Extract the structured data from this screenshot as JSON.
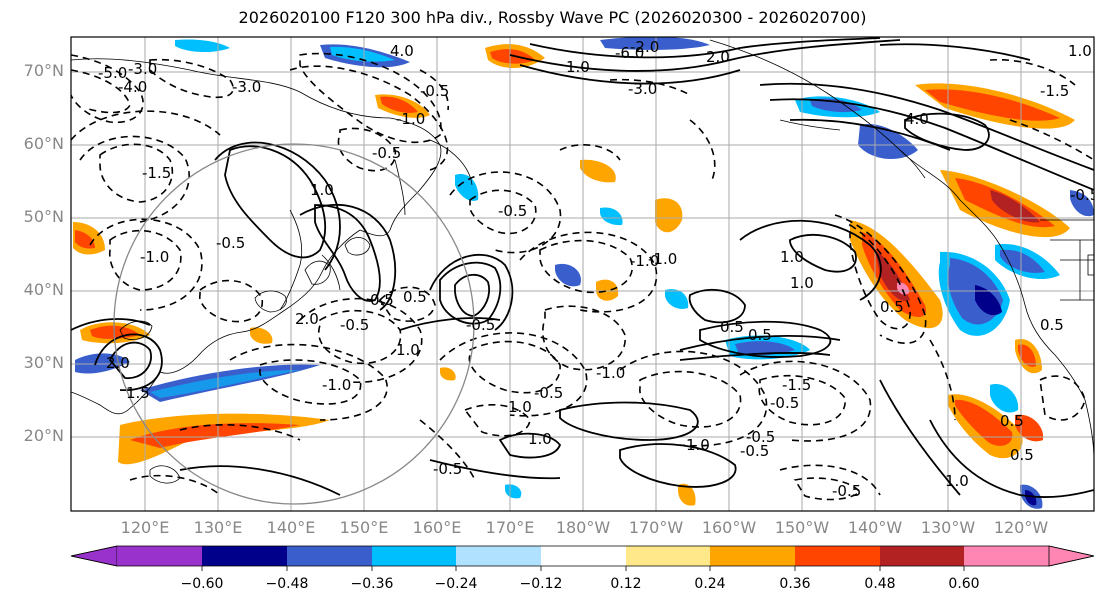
{
  "title": "2026020100 F120 300 hPa div., Rossby Wave PC (2026020300 - 2026020700)",
  "lat_labels": [
    "70°N",
    "60°N",
    "50°N",
    "40°N",
    "30°N",
    "20°N"
  ],
  "lon_labels": [
    "120°E",
    "130°E",
    "140°E",
    "150°E",
    "160°E",
    "170°E",
    "180°W",
    "170°W",
    "160°W",
    "150°W",
    "140°W",
    "130°W",
    "120°W"
  ],
  "colorbar": {
    "ticks": [
      "−0.60",
      "−0.48",
      "−0.36",
      "−0.24",
      "−0.12",
      "0.12",
      "0.24",
      "0.36",
      "0.48",
      "0.60"
    ],
    "colors": [
      "#9932cc",
      "#00008b",
      "#3a5fcd",
      "#00bfff",
      "#b0e2ff",
      "#ffffff",
      "#ffe88a",
      "#ffa500",
      "#ff4500",
      "#b22222",
      "#ff85b3"
    ]
  },
  "contour_labels": [
    "-5.0",
    "-4.0",
    "-3.0",
    "-3.0",
    "-1.5",
    "-1.0",
    "-0.5",
    "-0.5",
    "-0.5",
    "-0.5",
    "-1.0",
    "-1.0",
    "-1.0",
    "-1.0",
    "-0.5",
    "-0.5",
    "-0.5",
    "-0.5",
    "-1.5",
    "-0.5",
    "-0.5",
    "-1.5",
    "1.0",
    "1.0",
    "1.0",
    "1.0",
    "1.0",
    "0.5",
    "0.5",
    "0.5",
    "1.0",
    "1.0",
    "1.5",
    "2.0",
    "2.0",
    "4.0",
    "4.0",
    "1.0",
    "0.5",
    "0.5",
    "1.0",
    "2.0",
    "1.0",
    "-2.0",
    "-6.0",
    "-3.0",
    "-1.0",
    "-0.5",
    "-0.5",
    "-0.5",
    "0.5",
    "0.5",
    "0.5"
  ]
}
